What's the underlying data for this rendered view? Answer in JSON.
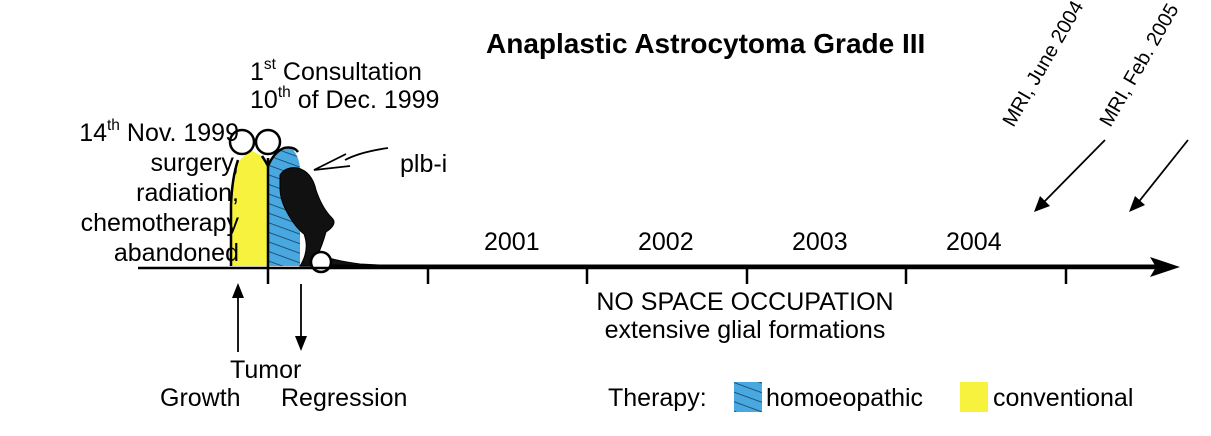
{
  "title": "Anaplastic Astrocytoma Grade III",
  "consultation": {
    "line1_prefix": "1",
    "line1_sup": "st",
    "line1_rest": " Consultation",
    "line2_prefix": "10",
    "line2_sup": "th",
    "line2_rest": " of Dec. 1999"
  },
  "surgery_note": {
    "line1_prefix": "14",
    "line1_sup": "th",
    "line1_rest": " Nov. 1999",
    "line2": "surgery,",
    "line3": "radiation,",
    "line4": "chemotherapy",
    "line5": "abandoned"
  },
  "plb_label": "plb-i",
  "years": [
    "2001",
    "2002",
    "2003",
    "2004"
  ],
  "no_space": {
    "line1": "NO SPACE OCCUPATION",
    "line2": "extensive glial formations"
  },
  "tumor_label": "Tumor",
  "growth_label": "Growth",
  "regression_label": "Regression",
  "mri_labels": [
    "MRI, June 2004",
    "MRI, Feb. 2005"
  ],
  "legend": {
    "title": "Therapy:",
    "items": [
      {
        "label": "homoeopathic",
        "color": "#4aa8e0"
      },
      {
        "label": "conventional",
        "color": "#f7f23e"
      }
    ]
  },
  "colors": {
    "homoeopathic": "#4aa8e0",
    "conventional": "#f7f23e",
    "line": "#000000"
  }
}
